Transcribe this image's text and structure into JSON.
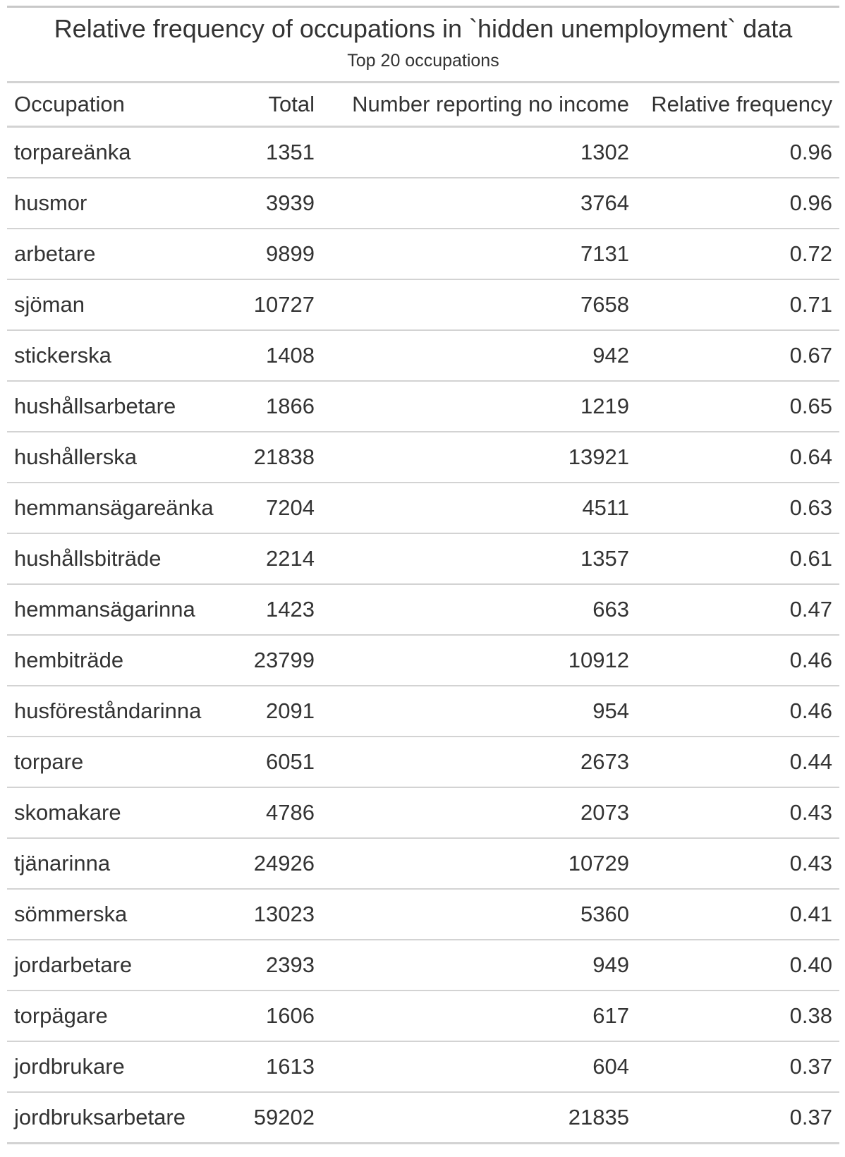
{
  "title": "Relative frequency of occupations in `hidden unemployment` data",
  "subtitle": "Top 20 occupations",
  "columns": [
    "Occupation",
    "Total",
    "Number reporting no income",
    "Relative frequency"
  ],
  "rows": [
    [
      "torpareänka",
      "1351",
      "1302",
      "0.96"
    ],
    [
      "husmor",
      "3939",
      "3764",
      "0.96"
    ],
    [
      "arbetare",
      "9899",
      "7131",
      "0.72"
    ],
    [
      "sjöman",
      "10727",
      "7658",
      "0.71"
    ],
    [
      "stickerska",
      "1408",
      "942",
      "0.67"
    ],
    [
      "hushållsarbetare",
      "1866",
      "1219",
      "0.65"
    ],
    [
      "hushållerska",
      "21838",
      "13921",
      "0.64"
    ],
    [
      "hemmansägareänka",
      "7204",
      "4511",
      "0.63"
    ],
    [
      "hushållsbiträde",
      "2214",
      "1357",
      "0.61"
    ],
    [
      "hemmansägarinna",
      "1423",
      "663",
      "0.47"
    ],
    [
      "hembiträde",
      "23799",
      "10912",
      "0.46"
    ],
    [
      "husföreståndarinna",
      "2091",
      "954",
      "0.46"
    ],
    [
      "torpare",
      "6051",
      "2673",
      "0.44"
    ],
    [
      "skomakare",
      "4786",
      "2073",
      "0.43"
    ],
    [
      "tjänarinna",
      "24926",
      "10729",
      "0.43"
    ],
    [
      "sömmerska",
      "13023",
      "5360",
      "0.41"
    ],
    [
      "jordarbetare",
      "2393",
      "949",
      "0.40"
    ],
    [
      "torpägare",
      "1606",
      "617",
      "0.38"
    ],
    [
      "jordbrukare",
      "1613",
      "604",
      "0.37"
    ],
    [
      "jordbruksarbetare",
      "59202",
      "21835",
      "0.37"
    ]
  ]
}
